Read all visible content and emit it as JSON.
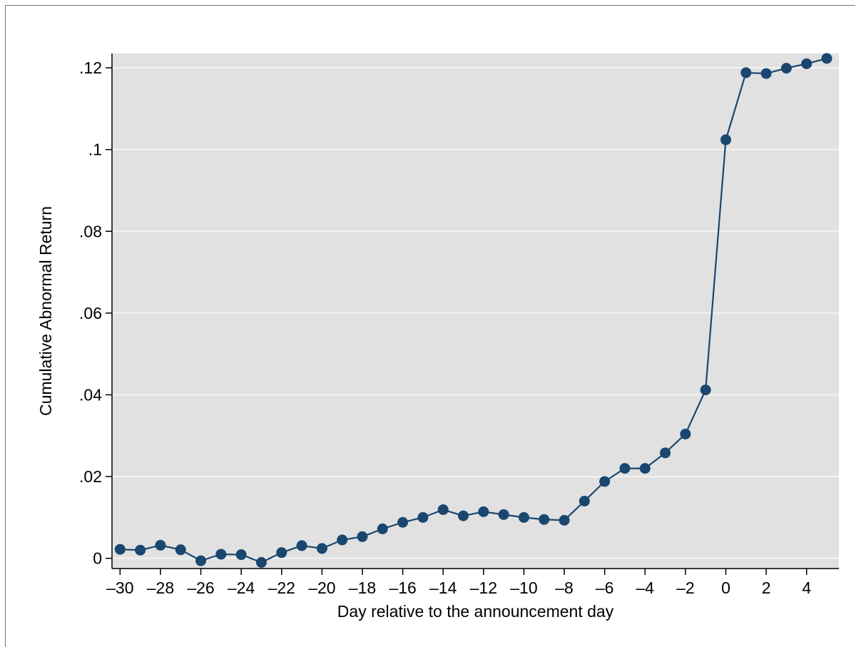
{
  "chart_data": {
    "type": "line",
    "title": "",
    "xlabel": "Day relative to the announcement day",
    "ylabel": "Cumulative Abnormal Return",
    "xlim": [
      -30.4,
      5.6
    ],
    "ylim": [
      -0.0025,
      0.1235
    ],
    "x_ticks": [
      -30,
      -28,
      -26,
      -24,
      -22,
      -20,
      -18,
      -16,
      -14,
      -12,
      -10,
      -8,
      -6,
      -4,
      -2,
      0,
      2,
      4
    ],
    "x_tick_labels": [
      "–30",
      "–28",
      "–26",
      "–24",
      "–22",
      "–20",
      "–18",
      "–16",
      "–14",
      "–12",
      "–10",
      "–8",
      "–6",
      "–4",
      "–2",
      "0",
      "2",
      "4"
    ],
    "y_ticks": [
      0,
      0.02,
      0.04,
      0.06,
      0.08,
      0.1,
      0.12
    ],
    "y_tick_labels": [
      "0",
      ".02",
      ".04",
      ".06",
      ".08",
      ".1",
      ".12"
    ],
    "grid": true,
    "background_color": "#e1e1e1",
    "series_color": "#1a476f",
    "series": [
      {
        "x": [
          -30,
          -29,
          -28,
          -27,
          -26,
          -25,
          -24,
          -23,
          -22,
          -21,
          -20,
          -19,
          -18,
          -17,
          -16,
          -15,
          -14,
          -13,
          -12,
          -11,
          -10,
          -9,
          -8,
          -7,
          -6,
          -5,
          -4,
          -3,
          -2,
          -1,
          0,
          1,
          2,
          3,
          4,
          5
        ],
        "y": [
          0.0022,
          0.002,
          0.0032,
          0.0021,
          -0.0006,
          0.001,
          0.0009,
          -0.001,
          0.0014,
          0.0031,
          0.0024,
          0.0045,
          0.0053,
          0.0072,
          0.0088,
          0.01,
          0.0119,
          0.0104,
          0.0114,
          0.0107,
          0.01,
          0.0095,
          0.0093,
          0.014,
          0.0188,
          0.022,
          0.022,
          0.0258,
          0.0304,
          0.0412,
          0.1024,
          0.1188,
          0.1186,
          0.1199,
          0.121,
          0.1223
        ]
      }
    ]
  }
}
